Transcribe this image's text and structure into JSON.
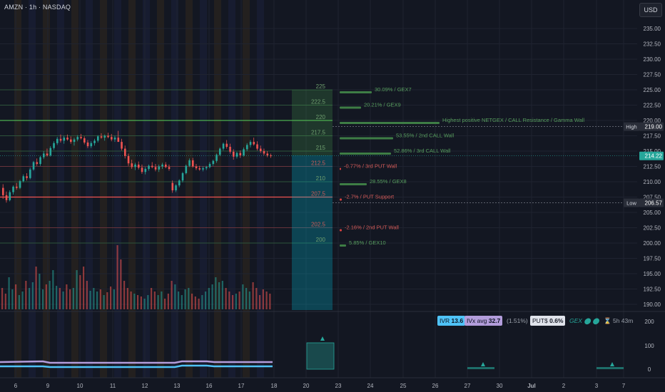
{
  "header": {
    "title": "AMZN · 1h · NASDAQ",
    "currency": "USD"
  },
  "colors": {
    "bg": "#131722",
    "up": "#26a69a",
    "down": "#ef5350",
    "green_line": "#4caf50",
    "red_line": "#ef5350",
    "purple": "#b39ddb",
    "cyan": "#4fc3f7"
  },
  "badges": {
    "ivr_label": "IVR",
    "ivr_value": "13.6",
    "ivx_label": "IVx avg",
    "ivx_value": "32.7",
    "pct": "(1.51%)",
    "puts_label": "PUT$",
    "puts_value": "0.6%",
    "gex_label": "GEX",
    "timer": "5h 43m"
  },
  "chart_data": {
    "type": "candlestick",
    "title": "AMZN · 1h · NASDAQ",
    "ylim": [
      188.5,
      238
    ],
    "price_ticks": [
      "235.00",
      "232.50",
      "230.00",
      "227.50",
      "225.00",
      "222.50",
      "220.00",
      "217.50",
      "215.00",
      "212.50",
      "210.00",
      "207.50",
      "205.00",
      "202.50",
      "200.00",
      "197.50",
      "195.00",
      "192.50",
      "190.00"
    ],
    "price_labels": [
      {
        "tag": "High",
        "value": "219.00",
        "y": 219.0
      },
      {
        "tag": "",
        "value": "214.22",
        "y": 214.22
      },
      {
        "tag": "Low",
        "value": "206.57",
        "y": 206.57
      }
    ],
    "x_labels": [
      "6",
      "9",
      "10",
      "11",
      "12",
      "13",
      "16",
      "17",
      "18",
      "20",
      "23",
      "24",
      "25",
      "26",
      "27",
      "30",
      "Jul",
      "2",
      "3",
      "7"
    ],
    "gex_levels": [
      {
        "strike": "225",
        "value": 225,
        "text": "30.09% / GEX7",
        "kind": "call",
        "len": 45
      },
      {
        "strike": "222.5",
        "value": 222.5,
        "text": "20.21% / GEX9",
        "kind": "call",
        "len": 30
      },
      {
        "strike": "220",
        "value": 220,
        "text": "Highest positive NETGEX / CALL Resistance / Gamma Wall",
        "kind": "call",
        "len": 140
      },
      {
        "strike": "217.5",
        "value": 217.5,
        "text": "53.55% / 2nd CALL Wall",
        "kind": "call",
        "len": 75
      },
      {
        "strike": "215",
        "value": 215,
        "text": "52.86% / 3rd CALL Wall",
        "kind": "call",
        "len": 72
      },
      {
        "strike": "212.5",
        "value": 212.5,
        "text": "-0.77% / 3rd PUT Wall",
        "kind": "put",
        "len": 2
      },
      {
        "strike": "210",
        "value": 210,
        "text": "28.55% / GEX8",
        "kind": "call",
        "len": 38
      },
      {
        "strike": "207.5",
        "value": 207.5,
        "text": "-2.7% / PUT Support",
        "kind": "put",
        "len": 3
      },
      {
        "strike": "202.5",
        "value": 202.5,
        "text": "-2.16% / 2nd PUT Wall",
        "kind": "put",
        "len": 3
      },
      {
        "strike": "200",
        "value": 200,
        "text": "5.85% / GEX10",
        "kind": "call",
        "len": 9
      }
    ],
    "lower_axis": [
      "200",
      "100",
      "0"
    ],
    "candles": [
      [
        209.0,
        209.6,
        207.2,
        207.8
      ],
      [
        207.8,
        208.4,
        206.6,
        207.0
      ],
      [
        207.0,
        208.6,
        206.8,
        208.3
      ],
      [
        208.3,
        209.4,
        207.9,
        209.2
      ],
      [
        209.2,
        209.8,
        208.7,
        209.0
      ],
      [
        209.0,
        210.3,
        208.8,
        210.1
      ],
      [
        210.1,
        211.2,
        209.9,
        210.9
      ],
      [
        210.9,
        211.4,
        210.2,
        210.6
      ],
      [
        210.6,
        212.3,
        210.4,
        212.0
      ],
      [
        212.0,
        213.4,
        211.8,
        213.2
      ],
      [
        213.2,
        213.8,
        212.6,
        212.9
      ],
      [
        212.9,
        214.2,
        212.6,
        214.0
      ],
      [
        214.0,
        215.0,
        213.7,
        214.6
      ],
      [
        214.6,
        215.4,
        214.1,
        214.3
      ],
      [
        214.3,
        215.8,
        214.1,
        215.5
      ],
      [
        215.5,
        216.6,
        215.2,
        216.3
      ],
      [
        216.3,
        217.3,
        216.0,
        217.0
      ],
      [
        217.0,
        217.7,
        216.4,
        216.7
      ],
      [
        216.7,
        217.5,
        216.2,
        217.2
      ],
      [
        217.2,
        217.7,
        216.7,
        216.9
      ],
      [
        216.9,
        217.4,
        216.2,
        216.5
      ],
      [
        216.5,
        217.2,
        215.9,
        216.9
      ],
      [
        216.9,
        217.6,
        216.6,
        217.3
      ],
      [
        217.3,
        217.8,
        216.9,
        217.1
      ],
      [
        217.1,
        217.4,
        216.1,
        216.4
      ],
      [
        216.4,
        216.8,
        215.5,
        215.8
      ],
      [
        215.8,
        216.6,
        215.5,
        216.3
      ],
      [
        216.3,
        217.0,
        215.9,
        216.7
      ],
      [
        216.7,
        217.6,
        216.4,
        217.4
      ],
      [
        217.4,
        217.9,
        217.0,
        217.2
      ],
      [
        217.2,
        217.7,
        216.7,
        217.5
      ],
      [
        217.5,
        218.0,
        217.1,
        217.3
      ],
      [
        217.3,
        217.8,
        216.6,
        216.9
      ],
      [
        216.9,
        217.5,
        216.5,
        217.2
      ],
      [
        217.2,
        218.3,
        216.9,
        216.5
      ],
      [
        216.5,
        217.0,
        215.1,
        215.4
      ],
      [
        215.4,
        215.9,
        213.8,
        214.2
      ],
      [
        214.2,
        214.6,
        212.6,
        213.0
      ],
      [
        213.0,
        213.6,
        212.1,
        212.4
      ],
      [
        212.4,
        213.1,
        211.9,
        212.8
      ],
      [
        212.8,
        213.3,
        212.0,
        212.3
      ],
      [
        212.3,
        212.8,
        211.3,
        211.6
      ],
      [
        211.6,
        212.4,
        211.2,
        212.1
      ],
      [
        212.1,
        212.8,
        211.8,
        212.6
      ],
      [
        212.6,
        213.2,
        212.2,
        212.4
      ],
      [
        212.4,
        212.9,
        211.7,
        212.0
      ],
      [
        212.0,
        212.8,
        211.6,
        212.5
      ],
      [
        212.5,
        213.1,
        212.1,
        212.8
      ],
      [
        212.8,
        213.2,
        212.2,
        212.4
      ],
      [
        212.4,
        212.8,
        211.8,
        212.1
      ],
      [
        209.8,
        210.2,
        208.2,
        208.6
      ],
      [
        208.6,
        209.6,
        208.3,
        209.4
      ],
      [
        209.4,
        210.4,
        209.1,
        210.2
      ],
      [
        210.2,
        211.6,
        209.9,
        211.4
      ],
      [
        211.4,
        212.8,
        211.2,
        212.6
      ],
      [
        212.6,
        213.8,
        212.4,
        213.5
      ],
      [
        213.5,
        213.9,
        212.3,
        212.5
      ],
      [
        212.5,
        212.9,
        211.9,
        212.2
      ],
      [
        212.2,
        212.6,
        211.8,
        212.0
      ],
      [
        212.0,
        212.5,
        211.7,
        212.2
      ],
      [
        212.2,
        212.6,
        211.9,
        212.4
      ],
      [
        212.4,
        213.2,
        212.2,
        212.9
      ],
      [
        212.9,
        213.6,
        212.6,
        213.4
      ],
      [
        213.4,
        214.6,
        213.1,
        214.4
      ],
      [
        214.4,
        215.6,
        214.2,
        215.4
      ],
      [
        215.4,
        216.4,
        215.1,
        216.2
      ],
      [
        216.2,
        216.8,
        215.4,
        215.7
      ],
      [
        215.7,
        216.2,
        214.6,
        214.9
      ],
      [
        214.9,
        215.3,
        213.6,
        214.1
      ],
      [
        214.1,
        214.9,
        213.8,
        214.7
      ],
      [
        214.7,
        215.1,
        213.9,
        214.3
      ],
      [
        214.3,
        215.6,
        214.1,
        215.3
      ],
      [
        215.3,
        216.3,
        215.0,
        216.0
      ],
      [
        216.0,
        216.8,
        215.6,
        216.5
      ],
      [
        216.5,
        217.2,
        215.9,
        216.1
      ],
      [
        216.1,
        216.6,
        215.1,
        215.4
      ],
      [
        215.4,
        215.9,
        214.7,
        215.0
      ],
      [
        215.0,
        215.4,
        214.3,
        214.6
      ],
      [
        214.6,
        215.0,
        214.0,
        214.3
      ],
      [
        214.3,
        214.6,
        213.9,
        214.2
      ]
    ],
    "volume": [
      30,
      22,
      45,
      28,
      35,
      20,
      25,
      40,
      30,
      38,
      60,
      50,
      28,
      35,
      40,
      55,
      33,
      30,
      25,
      35,
      28,
      30,
      55,
      48,
      60,
      40,
      26,
      30,
      25,
      28,
      20,
      24,
      32,
      28,
      90,
      70,
      40,
      30,
      25,
      22,
      20,
      18,
      15,
      20,
      30,
      25,
      20,
      25,
      15,
      22,
      40,
      35,
      25,
      20,
      28,
      30,
      22,
      18,
      15,
      20,
      25,
      30,
      35,
      45,
      38,
      40,
      30,
      25,
      20,
      22,
      25,
      35,
      30,
      25,
      38,
      30,
      20,
      28,
      25,
      22
    ]
  }
}
